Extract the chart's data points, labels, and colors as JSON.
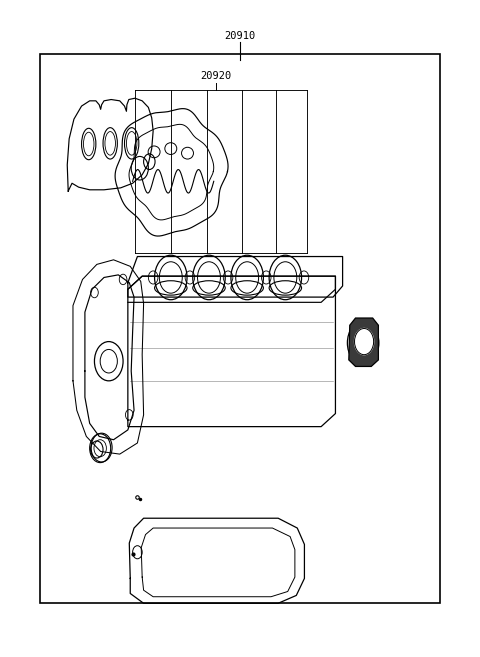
{
  "background_color": "#ffffff",
  "line_color": "#000000",
  "label_20910": "20910",
  "label_20920": "20920",
  "fig_width": 4.8,
  "fig_height": 6.57,
  "dpi": 100,
  "border": [
    0.08,
    0.08,
    0.92,
    0.92
  ]
}
